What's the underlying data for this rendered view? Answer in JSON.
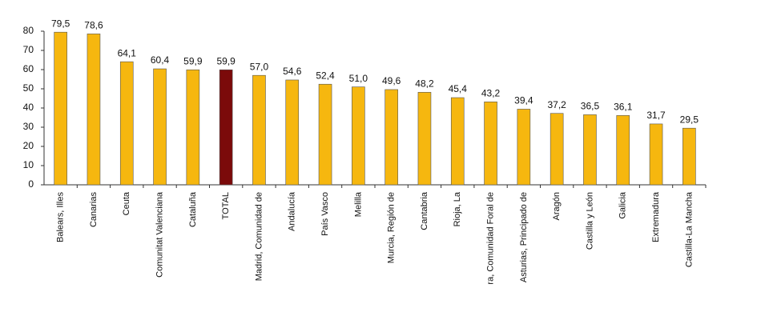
{
  "chart_data": {
    "type": "bar",
    "categories": [
      "Balears, Illes",
      "Canarias",
      "Ceuta",
      "Comunitat Valenciana",
      "Cataluña",
      "TOTAL",
      "Madrid, Comunidad de",
      "Andalucía",
      "País Vasco",
      "Melilla",
      "Murcia, Región de",
      "Cantabria",
      "Rioja, La",
      "ra, Comunidad Foral de",
      "Asturias, Principado de",
      "Aragón",
      "Castilla y León",
      "Galicia",
      "Extremadura",
      "Castilla-La Mancha"
    ],
    "values": [
      79.5,
      78.6,
      64.1,
      60.4,
      59.9,
      59.9,
      57.0,
      54.6,
      52.4,
      51.0,
      49.6,
      48.2,
      45.4,
      43.2,
      39.4,
      37.2,
      36.5,
      36.1,
      31.7,
      29.5
    ],
    "value_labels": [
      "79,5",
      "78,6",
      "64,1",
      "60,4",
      "59,9",
      "59,9",
      "57,0",
      "54,6",
      "52,4",
      "51,0",
      "49,6",
      "48,2",
      "45,4",
      "43,2",
      "39,4",
      "37,2",
      "36,5",
      "36,1",
      "31,7",
      "29,5"
    ],
    "colors": [
      "#f6b70f",
      "#f6b70f",
      "#f6b70f",
      "#f6b70f",
      "#f6b70f",
      "#7b0a0a",
      "#f6b70f",
      "#f6b70f",
      "#f6b70f",
      "#f6b70f",
      "#f6b70f",
      "#f6b70f",
      "#f6b70f",
      "#f6b70f",
      "#f6b70f",
      "#f6b70f",
      "#f6b70f",
      "#f6b70f",
      "#f6b70f",
      "#f6b70f"
    ],
    "ylim": [
      0,
      80
    ],
    "yticks": [
      0,
      10,
      20,
      30,
      40,
      50,
      60,
      70,
      80
    ],
    "grid": false
  }
}
